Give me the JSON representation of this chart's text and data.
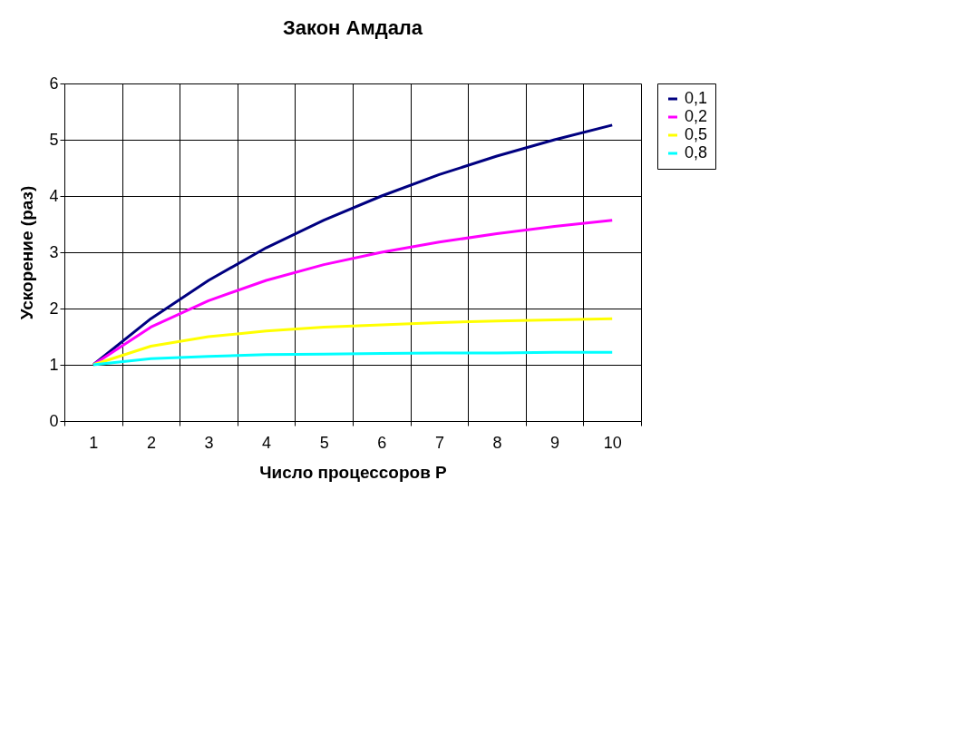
{
  "chart_data": {
    "type": "line",
    "title": "Закон Амдала",
    "xlabel": "Число процессоров P",
    "ylabel": "Ускорение (раз)",
    "categories": [
      "1",
      "2",
      "3",
      "4",
      "5",
      "6",
      "7",
      "8",
      "9",
      "10"
    ],
    "series": [
      {
        "name": "0,1",
        "color": "#000080",
        "values": [
          1,
          1.82,
          2.5,
          3.08,
          3.57,
          4,
          4.38,
          4.71,
          5,
          5.26
        ]
      },
      {
        "name": "0,2",
        "color": "#ff00ff",
        "values": [
          1,
          1.67,
          2.14,
          2.5,
          2.78,
          3,
          3.18,
          3.33,
          3.46,
          3.57
        ]
      },
      {
        "name": "0,5",
        "color": "#ffff00",
        "values": [
          1,
          1.33,
          1.5,
          1.6,
          1.67,
          1.71,
          1.75,
          1.78,
          1.8,
          1.82
        ]
      },
      {
        "name": "0,8",
        "color": "#00ffff",
        "values": [
          1,
          1.11,
          1.15,
          1.18,
          1.19,
          1.2,
          1.21,
          1.21,
          1.22,
          1.22
        ]
      }
    ],
    "ylim": [
      0,
      6
    ],
    "yticks": [
      0,
      1,
      2,
      3,
      4,
      5,
      6
    ],
    "grid": true,
    "legend": "right",
    "marker": "none",
    "line_style": "solid"
  }
}
